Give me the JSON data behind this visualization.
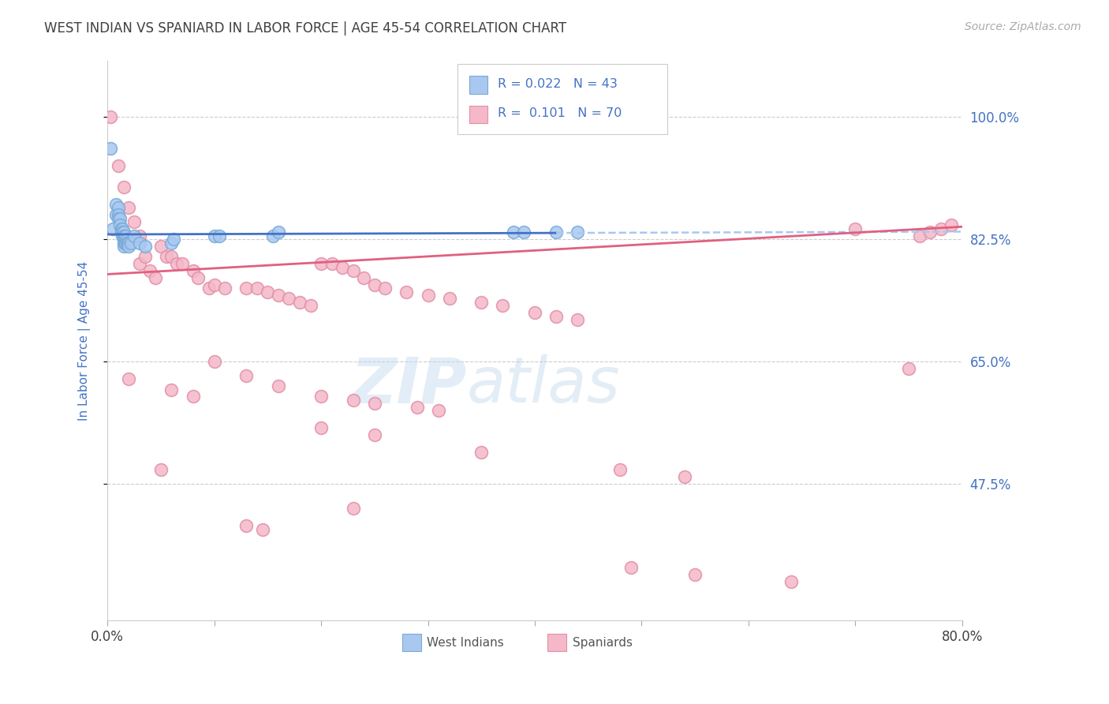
{
  "title": "WEST INDIAN VS SPANIARD IN LABOR FORCE | AGE 45-54 CORRELATION CHART",
  "source": "Source: ZipAtlas.com",
  "ylabel": "In Labor Force | Age 45-54",
  "xlim": [
    0.0,
    0.8
  ],
  "ylim": [
    0.28,
    1.08
  ],
  "xticks": [
    0.0,
    0.1,
    0.2,
    0.3,
    0.4,
    0.5,
    0.6,
    0.7,
    0.8
  ],
  "xticklabels": [
    "0.0%",
    "",
    "",
    "",
    "",
    "",
    "",
    "",
    "80.0%"
  ],
  "ytick_positions": [
    0.475,
    0.65,
    0.825,
    1.0
  ],
  "yticklabels": [
    "47.5%",
    "65.0%",
    "82.5%",
    "100.0%"
  ],
  "blue_color": "#a8c8f0",
  "blue_edge_color": "#7aaad8",
  "pink_color": "#f5b8c8",
  "pink_edge_color": "#e090a8",
  "blue_line_color": "#4472c4",
  "pink_line_color": "#e06080",
  "blue_dash_color": "#a8c8f0",
  "background_color": "#ffffff",
  "grid_color": "#cccccc",
  "title_color": "#404040",
  "tick_color_y": "#4472c4",
  "tick_color_x": "#404040",
  "watermark_color": "#d8eaf8",
  "blue_scatter": [
    [
      0.003,
      0.955
    ],
    [
      0.005,
      0.84
    ],
    [
      0.008,
      0.875
    ],
    [
      0.008,
      0.86
    ],
    [
      0.01,
      0.87
    ],
    [
      0.01,
      0.86
    ],
    [
      0.01,
      0.855
    ],
    [
      0.012,
      0.855
    ],
    [
      0.012,
      0.845
    ],
    [
      0.013,
      0.84
    ],
    [
      0.013,
      0.835
    ],
    [
      0.014,
      0.84
    ],
    [
      0.014,
      0.835
    ],
    [
      0.014,
      0.83
    ],
    [
      0.015,
      0.835
    ],
    [
      0.015,
      0.83
    ],
    [
      0.015,
      0.825
    ],
    [
      0.015,
      0.82
    ],
    [
      0.015,
      0.815
    ],
    [
      0.016,
      0.83
    ],
    [
      0.016,
      0.825
    ],
    [
      0.016,
      0.82
    ],
    [
      0.017,
      0.83
    ],
    [
      0.017,
      0.82
    ],
    [
      0.018,
      0.825
    ],
    [
      0.018,
      0.82
    ],
    [
      0.019,
      0.82
    ],
    [
      0.02,
      0.82
    ],
    [
      0.02,
      0.815
    ],
    [
      0.022,
      0.82
    ],
    [
      0.025,
      0.83
    ],
    [
      0.03,
      0.82
    ],
    [
      0.035,
      0.815
    ],
    [
      0.06,
      0.82
    ],
    [
      0.062,
      0.825
    ],
    [
      0.1,
      0.83
    ],
    [
      0.105,
      0.83
    ],
    [
      0.155,
      0.83
    ],
    [
      0.16,
      0.835
    ],
    [
      0.38,
      0.835
    ],
    [
      0.39,
      0.835
    ],
    [
      0.42,
      0.835
    ],
    [
      0.44,
      0.835
    ]
  ],
  "pink_scatter": [
    [
      0.003,
      1.0
    ],
    [
      0.01,
      0.93
    ],
    [
      0.015,
      0.9
    ],
    [
      0.02,
      0.87
    ],
    [
      0.025,
      0.85
    ],
    [
      0.03,
      0.83
    ],
    [
      0.03,
      0.79
    ],
    [
      0.035,
      0.8
    ],
    [
      0.04,
      0.78
    ],
    [
      0.045,
      0.77
    ],
    [
      0.05,
      0.815
    ],
    [
      0.055,
      0.8
    ],
    [
      0.06,
      0.8
    ],
    [
      0.065,
      0.79
    ],
    [
      0.07,
      0.79
    ],
    [
      0.08,
      0.78
    ],
    [
      0.085,
      0.77
    ],
    [
      0.095,
      0.755
    ],
    [
      0.1,
      0.76
    ],
    [
      0.11,
      0.755
    ],
    [
      0.13,
      0.755
    ],
    [
      0.14,
      0.755
    ],
    [
      0.15,
      0.75
    ],
    [
      0.16,
      0.745
    ],
    [
      0.17,
      0.74
    ],
    [
      0.18,
      0.735
    ],
    [
      0.19,
      0.73
    ],
    [
      0.2,
      0.79
    ],
    [
      0.21,
      0.79
    ],
    [
      0.22,
      0.785
    ],
    [
      0.23,
      0.78
    ],
    [
      0.24,
      0.77
    ],
    [
      0.25,
      0.76
    ],
    [
      0.26,
      0.755
    ],
    [
      0.28,
      0.75
    ],
    [
      0.3,
      0.745
    ],
    [
      0.32,
      0.74
    ],
    [
      0.35,
      0.735
    ],
    [
      0.37,
      0.73
    ],
    [
      0.4,
      0.72
    ],
    [
      0.42,
      0.715
    ],
    [
      0.44,
      0.71
    ],
    [
      0.1,
      0.65
    ],
    [
      0.13,
      0.63
    ],
    [
      0.16,
      0.615
    ],
    [
      0.2,
      0.6
    ],
    [
      0.23,
      0.595
    ],
    [
      0.25,
      0.59
    ],
    [
      0.29,
      0.585
    ],
    [
      0.31,
      0.58
    ],
    [
      0.02,
      0.625
    ],
    [
      0.06,
      0.61
    ],
    [
      0.08,
      0.6
    ],
    [
      0.05,
      0.495
    ],
    [
      0.2,
      0.555
    ],
    [
      0.25,
      0.545
    ],
    [
      0.13,
      0.415
    ],
    [
      0.145,
      0.41
    ],
    [
      0.23,
      0.44
    ],
    [
      0.35,
      0.52
    ],
    [
      0.48,
      0.495
    ],
    [
      0.54,
      0.485
    ],
    [
      0.49,
      0.355
    ],
    [
      0.55,
      0.345
    ],
    [
      0.64,
      0.335
    ],
    [
      0.75,
      0.64
    ],
    [
      0.7,
      0.84
    ],
    [
      0.76,
      0.83
    ],
    [
      0.77,
      0.835
    ],
    [
      0.78,
      0.84
    ],
    [
      0.79,
      0.845
    ]
  ]
}
